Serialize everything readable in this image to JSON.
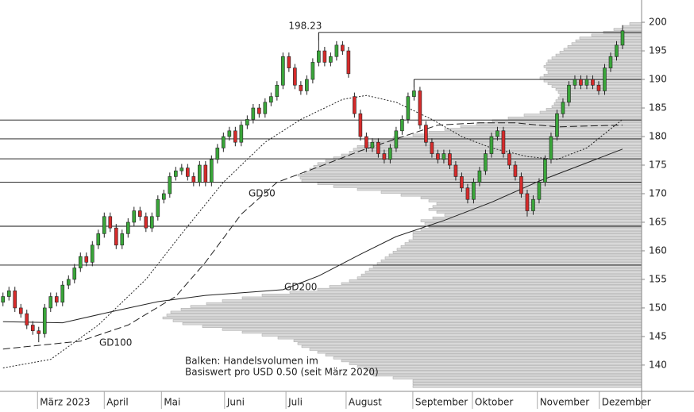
{
  "chart_data": {
    "type": "candlestick",
    "up_color": "#3aa63a",
    "down_color": "#d62b2b",
    "xlim": [
      -0.5,
      107.2
    ],
    "ylim": [
      135.4,
      203.9
    ],
    "yticks": [
      140,
      145,
      150,
      155,
      160,
      165,
      170,
      175,
      180,
      185,
      190,
      195,
      200
    ],
    "xticks": [
      {
        "value": 5.8,
        "label": "März 2023"
      },
      {
        "value": 17,
        "label": "April"
      },
      {
        "value": 26.6,
        "label": "Mai"
      },
      {
        "value": 37.2,
        "label": "Juni"
      },
      {
        "value": 47.5,
        "label": "Juli"
      },
      {
        "value": 57.6,
        "label": "August"
      },
      {
        "value": 68.8,
        "label": "September"
      },
      {
        "value": 78.8,
        "label": "Oktober"
      },
      {
        "value": 89.7,
        "label": "November"
      },
      {
        "value": 100.1,
        "label": "Dezember"
      }
    ],
    "candles": [
      [
        151,
        152.7,
        150.3,
        152
      ],
      [
        152,
        153.7,
        151.3,
        153
      ],
      [
        153,
        153.7,
        149.3,
        150
      ],
      [
        150,
        150.7,
        148.3,
        149
      ],
      [
        149,
        149.7,
        146.3,
        147
      ],
      [
        147,
        147.7,
        145.3,
        146
      ],
      [
        146,
        146.7,
        144,
        145.5
      ],
      [
        145.5,
        150.7,
        144.8,
        150
      ],
      [
        150,
        152.7,
        149.3,
        152
      ],
      [
        152,
        152.7,
        150.3,
        151
      ],
      [
        151,
        154.7,
        150.3,
        154
      ],
      [
        154,
        155.7,
        153.3,
        155
      ],
      [
        155,
        157.7,
        154.3,
        157
      ],
      [
        157,
        159.7,
        156.3,
        159
      ],
      [
        159,
        159.7,
        157.3,
        158
      ],
      [
        158,
        161.7,
        157.3,
        161
      ],
      [
        161,
        163.7,
        160.3,
        163
      ],
      [
        163,
        166.7,
        162.3,
        166
      ],
      [
        166,
        166.7,
        163.3,
        164
      ],
      [
        164,
        164.7,
        160.3,
        161
      ],
      [
        161,
        163.7,
        160.3,
        163
      ],
      [
        163,
        165.7,
        162.3,
        165
      ],
      [
        165,
        167.7,
        164.3,
        167
      ],
      [
        167,
        167.7,
        165.3,
        166
      ],
      [
        166,
        166.7,
        163.3,
        164
      ],
      [
        164,
        166.7,
        163.3,
        166
      ],
      [
        166,
        169.7,
        165.3,
        169
      ],
      [
        169,
        170.7,
        168.3,
        170
      ],
      [
        170,
        173.7,
        169.3,
        173
      ],
      [
        173,
        174.7,
        172.3,
        174
      ],
      [
        174,
        175.2,
        173.3,
        174.5
      ],
      [
        174.5,
        175.2,
        172.3,
        173
      ],
      [
        173,
        173.7,
        171.3,
        172
      ],
      [
        172,
        175.7,
        171.3,
        175
      ],
      [
        175,
        175.7,
        171.3,
        172
      ],
      [
        172,
        176.7,
        171.3,
        176
      ],
      [
        176,
        178.7,
        175.3,
        178
      ],
      [
        178,
        180.7,
        177.3,
        180
      ],
      [
        180,
        181.7,
        179.3,
        181
      ],
      [
        181,
        181.7,
        178.3,
        179
      ],
      [
        179,
        182.7,
        178.3,
        182
      ],
      [
        182,
        183.7,
        181.3,
        183
      ],
      [
        183,
        185.7,
        182.3,
        185
      ],
      [
        185,
        185.7,
        183.3,
        184
      ],
      [
        184,
        186.7,
        183.3,
        186
      ],
      [
        186,
        187.7,
        185.3,
        187
      ],
      [
        187,
        189.7,
        186.3,
        189
      ],
      [
        189,
        194.7,
        188.3,
        194
      ],
      [
        194,
        194.7,
        191.3,
        192
      ],
      [
        192,
        192.7,
        188.3,
        189
      ],
      [
        189,
        189.7,
        187.3,
        188
      ],
      [
        188,
        190.7,
        187.3,
        190
      ],
      [
        190,
        193.7,
        189.3,
        193
      ],
      [
        193,
        198.23,
        192.3,
        195
      ],
      [
        195,
        195.7,
        192.3,
        193
      ],
      [
        193,
        194.7,
        192.3,
        194
      ],
      [
        194,
        196.7,
        193.3,
        196
      ],
      [
        196,
        196.7,
        194.3,
        195
      ],
      [
        195,
        195.7,
        190.3,
        191
      ],
      [
        187,
        187.7,
        183.3,
        184
      ],
      [
        184,
        184.7,
        179.3,
        180
      ],
      [
        180,
        180.7,
        177.3,
        178
      ],
      [
        178,
        179.7,
        177.3,
        179
      ],
      [
        179,
        179.7,
        176.3,
        177
      ],
      [
        177,
        177.7,
        175.3,
        176
      ],
      [
        176,
        178.7,
        175.3,
        178
      ],
      [
        178,
        181.7,
        177.3,
        181
      ],
      [
        181,
        183.7,
        180.3,
        183
      ],
      [
        183,
        187.7,
        182.3,
        187
      ],
      [
        187,
        190,
        186.3,
        188
      ],
      [
        188,
        188.7,
        181.3,
        182
      ],
      [
        182,
        182.7,
        178.3,
        179
      ],
      [
        179,
        179.7,
        176.3,
        177
      ],
      [
        177,
        177.7,
        175.3,
        176
      ],
      [
        176,
        177.7,
        175.3,
        177
      ],
      [
        177,
        177.7,
        174.3,
        175
      ],
      [
        175,
        175.7,
        172.3,
        173
      ],
      [
        173,
        173.7,
        170.3,
        171
      ],
      [
        171,
        171.7,
        168.3,
        169
      ],
      [
        169,
        172.7,
        168.3,
        172
      ],
      [
        172,
        174.7,
        171.3,
        174
      ],
      [
        174,
        177.7,
        173.3,
        177
      ],
      [
        177,
        180.7,
        176.3,
        180
      ],
      [
        180,
        181.7,
        179.3,
        181
      ],
      [
        181,
        181.7,
        176.3,
        177
      ],
      [
        177,
        177.7,
        174.3,
        175
      ],
      [
        175,
        175.7,
        172.3,
        173
      ],
      [
        173,
        173.7,
        169.3,
        170
      ],
      [
        170,
        170.7,
        166,
        167
      ],
      [
        167,
        169.7,
        166.3,
        169
      ],
      [
        169,
        172.7,
        168.3,
        172
      ],
      [
        172,
        176.7,
        171.3,
        176
      ],
      [
        176,
        180.7,
        175.3,
        180
      ],
      [
        180,
        184.7,
        179.3,
        184
      ],
      [
        184,
        186.7,
        183.3,
        186
      ],
      [
        186,
        189.7,
        185.3,
        189
      ],
      [
        189,
        190.7,
        188.3,
        190
      ],
      [
        190,
        190.7,
        188.3,
        189
      ],
      [
        189,
        190.7,
        188.3,
        190
      ],
      [
        190,
        190.7,
        188.3,
        189
      ],
      [
        189,
        189.7,
        187.3,
        188
      ],
      [
        188,
        192.7,
        187.3,
        192
      ],
      [
        192,
        194.7,
        191.3,
        194
      ],
      [
        194,
        196.7,
        193.3,
        196
      ],
      [
        196,
        199.5,
        195.3,
        198.5
      ]
    ],
    "series": [
      {
        "name": "GD50",
        "style": "dotted",
        "color": "#222222",
        "x": [
          0,
          8,
          16,
          24,
          30,
          37,
          44,
          50,
          57,
          61,
          66,
          72,
          77,
          82,
          88,
          93,
          98,
          104
        ],
        "values": [
          139.5,
          141,
          147,
          155,
          163,
          172,
          179,
          183,
          186.5,
          187.2,
          186,
          183,
          180,
          178,
          176.5,
          176,
          178,
          183
        ]
      },
      {
        "name": "GD100",
        "style": "dashed",
        "color": "#222222",
        "x": [
          0,
          13,
          21,
          29,
          34,
          40,
          46,
          53,
          60,
          66,
          73,
          80,
          86,
          93,
          104
        ],
        "values": [
          142.8,
          144.2,
          147,
          152,
          158,
          166.4,
          172,
          174.7,
          177.5,
          179.6,
          182,
          182.4,
          182.4,
          181.7,
          182
        ]
      },
      {
        "name": "GD200",
        "style": "solid",
        "color": "#222222",
        "x": [
          0,
          10,
          18,
          26,
          34,
          42,
          47,
          53,
          60,
          66,
          74,
          82,
          90,
          98,
          104
        ],
        "values": [
          147.6,
          147.4,
          149.3,
          151.1,
          152.2,
          152.8,
          153.2,
          155.6,
          159.4,
          162.5,
          165.3,
          168.5,
          172.2,
          175.4,
          177.8
        ]
      }
    ],
    "levels": [
      182.9,
      179.6,
      176.1,
      172,
      164.3,
      157.5
    ],
    "high_marks": [
      {
        "value": 198.23,
        "x": 53,
        "label": "198.23"
      },
      {
        "value": 190,
        "x": 69
      }
    ],
    "volume_profile": {
      "note": [
        "Balken: Handelsvolumen im",
        "Basiswert pro USD 0.50 (seit März 2020)"
      ],
      "price_range": [
        136,
        200
      ],
      "volumes": [
        288,
        288,
        288,
        313,
        338,
        343,
        348,
        358,
        368,
        378,
        388,
        398,
        408,
        418,
        428,
        433,
        438,
        458,
        478,
        503,
        528,
        553,
        578,
        590,
        603,
        598,
        593,
        580,
        568,
        548,
        528,
        503,
        478,
        443,
        408,
        393,
        378,
        368,
        358,
        353,
        348,
        343,
        338,
        333,
        328,
        323,
        318,
        313,
        308,
        303,
        298,
        293,
        288,
        288,
        288,
        278,
        268,
        273,
        278,
        263,
        248,
        258,
        268,
        263,
        258,
        268,
        278,
        303,
        328,
        358,
        388,
        408,
        428,
        430,
        433,
        425,
        418,
        413,
        408,
        398,
        388,
        378,
        368,
        363,
        358,
        348,
        338,
        313,
        288,
        268,
        248,
        228,
        208,
        188,
        168,
        148,
        128,
        120,
        113,
        110,
        108,
        105,
        103,
        105,
        108,
        113,
        118,
        123,
        128,
        123,
        118,
        120,
        123,
        120,
        118,
        113,
        108,
        103,
        98,
        93,
        88,
        83,
        78,
        63,
        48,
        35,
        23,
        15
      ]
    }
  }
}
